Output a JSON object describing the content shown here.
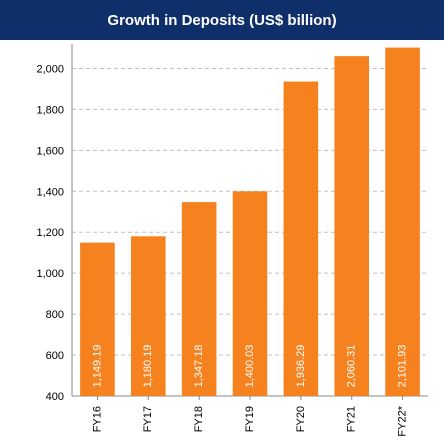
{
  "chart_data": {
    "type": "bar",
    "title": "Growth in Deposits (US$ billion)",
    "xlabel": "",
    "ylabel": "",
    "categories": [
      "FY16",
      "FY17",
      "FY18",
      "FY19",
      "FY20",
      "FY21",
      "FY22*"
    ],
    "values": [
      1149.19,
      1180.19,
      1347.18,
      1400.03,
      1936.29,
      2060.31,
      2101.93
    ],
    "data_labels": [
      "1,149.19",
      "1,180.19",
      "1,347.18",
      "1,400.03",
      "1,936.29",
      "2,060.31",
      "2,101.93"
    ],
    "ylim": [
      400,
      2100
    ],
    "yticks": [
      400,
      600,
      800,
      1000,
      1200,
      1400,
      1600,
      1800,
      2000
    ],
    "ytick_labels": [
      "400",
      "600",
      "800",
      "1,000",
      "1,200",
      "1,400",
      "1,600",
      "1,800",
      "2,000"
    ],
    "grid": true,
    "legend": "none",
    "colors": {
      "title_background": "#0f2f6b",
      "title_text": "#ffffff",
      "bar": "#f5821f",
      "data_label": "#ffffff",
      "grid": "#c0c0c0",
      "axis_text": "#000000"
    }
  }
}
